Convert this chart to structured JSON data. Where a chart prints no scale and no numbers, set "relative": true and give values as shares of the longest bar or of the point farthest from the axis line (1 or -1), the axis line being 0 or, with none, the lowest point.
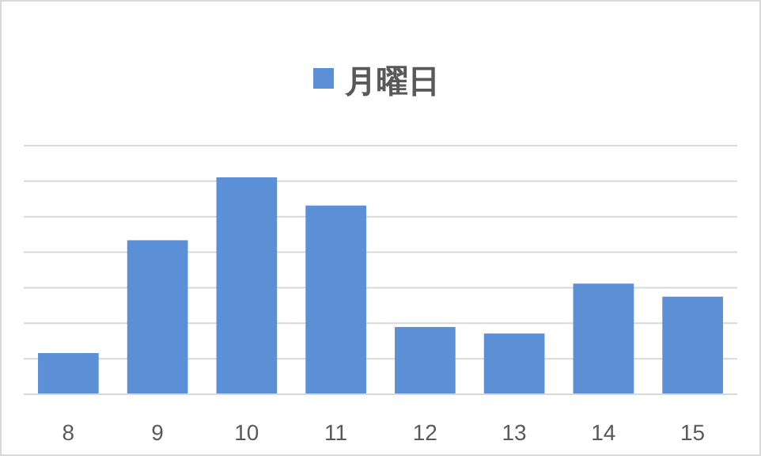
{
  "chart_data": {
    "type": "bar",
    "relative": true,
    "categories": [
      "8",
      "9",
      "10",
      "11",
      "12",
      "13",
      "14",
      "15"
    ],
    "series": [
      {
        "name": "月曜日",
        "color": "#5b8fd6",
        "values": [
          0.19,
          0.71,
          1,
          0.87,
          0.31,
          0.28,
          0.51,
          0.45
        ]
      }
    ],
    "legend": "top",
    "grid": "y"
  }
}
